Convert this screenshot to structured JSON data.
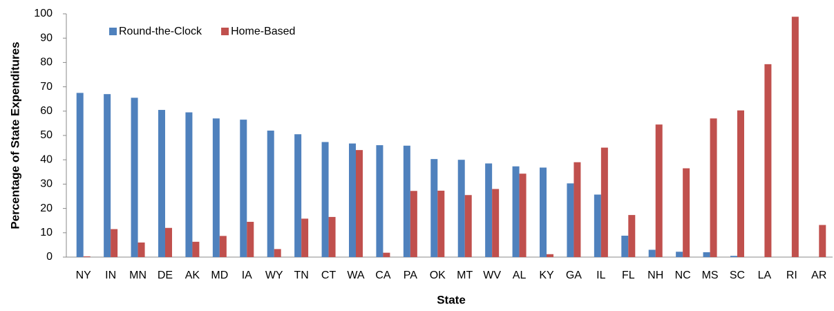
{
  "chart_data": {
    "type": "bar",
    "xlabel": "State",
    "ylabel": "Percentage of State Expenditures",
    "categories": [
      "NY",
      "IN",
      "MN",
      "DE",
      "AK",
      "MD",
      "IA",
      "WY",
      "TN",
      "CT",
      "WA",
      "CA",
      "PA",
      "OK",
      "MT",
      "WV",
      "AL",
      "KY",
      "GA",
      "IL",
      "FL",
      "NH",
      "NC",
      "MS",
      "SC",
      "LA",
      "RI",
      "AR"
    ],
    "series": [
      {
        "name": "Round-the-Clock",
        "color": "#4f81bd",
        "values": [
          67.5,
          67,
          65.5,
          60.5,
          59.5,
          57,
          56.5,
          52,
          50.5,
          47.3,
          46.7,
          46,
          45.8,
          40.3,
          40,
          38.5,
          37.3,
          36.8,
          30.3,
          25.7,
          8.8,
          3,
          2.2,
          2,
          0.5,
          0,
          0,
          0
        ]
      },
      {
        "name": "Home-Based",
        "color": "#c0504d",
        "values": [
          0.3,
          11.5,
          6,
          12,
          6.3,
          8.7,
          14.5,
          3.3,
          15.8,
          16.5,
          44,
          1.8,
          27.2,
          27.3,
          25.5,
          28,
          34.3,
          1.2,
          39,
          45,
          17.3,
          54.5,
          36.5,
          57,
          60.3,
          79.3,
          98.8,
          13.2
        ]
      }
    ],
    "ylim": [
      0,
      100
    ],
    "yticks": [
      0,
      10,
      20,
      30,
      40,
      50,
      60,
      70,
      80,
      90,
      100
    ],
    "grid": false,
    "legend": "top-left"
  }
}
